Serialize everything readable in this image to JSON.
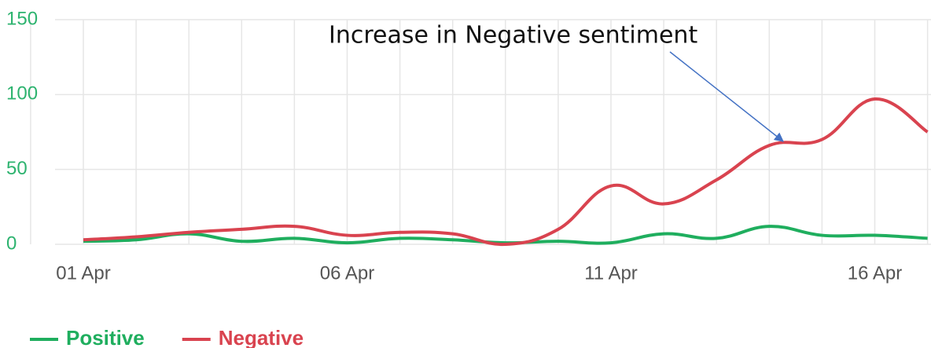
{
  "chart_data": {
    "type": "line",
    "annotation": "Increase in Negative sentiment",
    "categories": [
      "01 Apr",
      null,
      null,
      null,
      null,
      "06 Apr",
      null,
      null,
      null,
      null,
      "11 Apr",
      null,
      null,
      null,
      null,
      "16 Apr",
      null
    ],
    "series": [
      {
        "name": "Positive",
        "color": "#1fae5e",
        "values": [
          2,
          3,
          7,
          2,
          4,
          1,
          4,
          3,
          1,
          2,
          1,
          7,
          4,
          12,
          6,
          6,
          4
        ]
      },
      {
        "name": "Negative",
        "color": "#d9434f",
        "values": [
          3,
          5,
          8,
          10,
          12,
          6,
          8,
          7,
          0,
          10,
          39,
          27,
          43,
          66,
          70,
          97,
          75
        ]
      }
    ],
    "ylim": [
      0,
      150
    ],
    "yticks": [
      0,
      50,
      100,
      150
    ],
    "grid": true
  }
}
